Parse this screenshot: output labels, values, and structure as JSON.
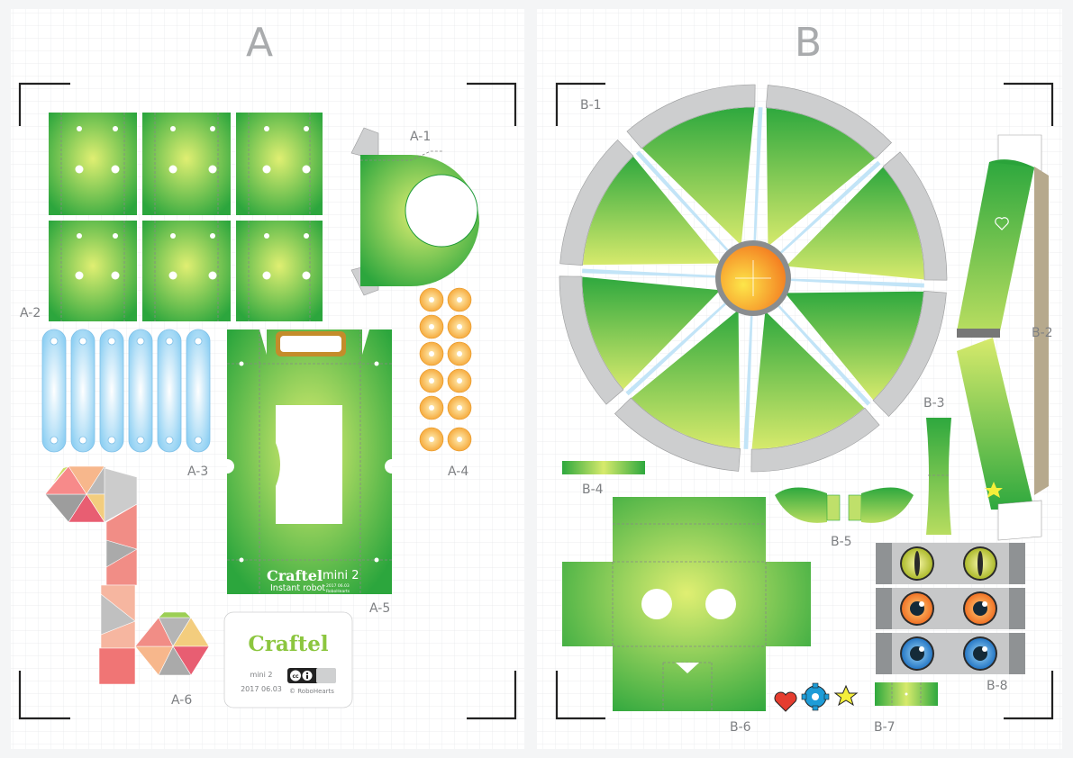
{
  "sheets": [
    {
      "title": "A"
    },
    {
      "title": "B"
    }
  ],
  "part_labels": {
    "a1": "A-1",
    "a2": "A-2",
    "a3": "A-3",
    "a4": "A-4",
    "a5": "A-5",
    "a6": "A-6",
    "b1": "B-1",
    "b2": "B-2",
    "b3": "B-3",
    "b4": "B-4",
    "b5": "B-5",
    "b6": "B-6",
    "b7": "B-7",
    "b8": "B-8"
  },
  "body_print": {
    "brand": "Craftel",
    "model": "mini 2",
    "tagline": "Instant robot",
    "date": "2017 06.03",
    "maker": "RoboHearts"
  },
  "credit_card": {
    "brand": "Craftel",
    "model": "mini 2",
    "date": "2017 06.03",
    "license": "© RoboHearts",
    "license_badge": "cc-by-icon"
  },
  "colors": {
    "green": "#2eaa3e",
    "green_light": "#d9ec6a",
    "blue_light": "#bfe3f8",
    "orange": "#f7a43a",
    "gray": "#c9cacb"
  },
  "stickers": [
    "heart-icon",
    "gear-icon",
    "star-icon"
  ],
  "eye_rows": [
    "yellow-eyes",
    "orange-eyes",
    "blue-eyes"
  ]
}
